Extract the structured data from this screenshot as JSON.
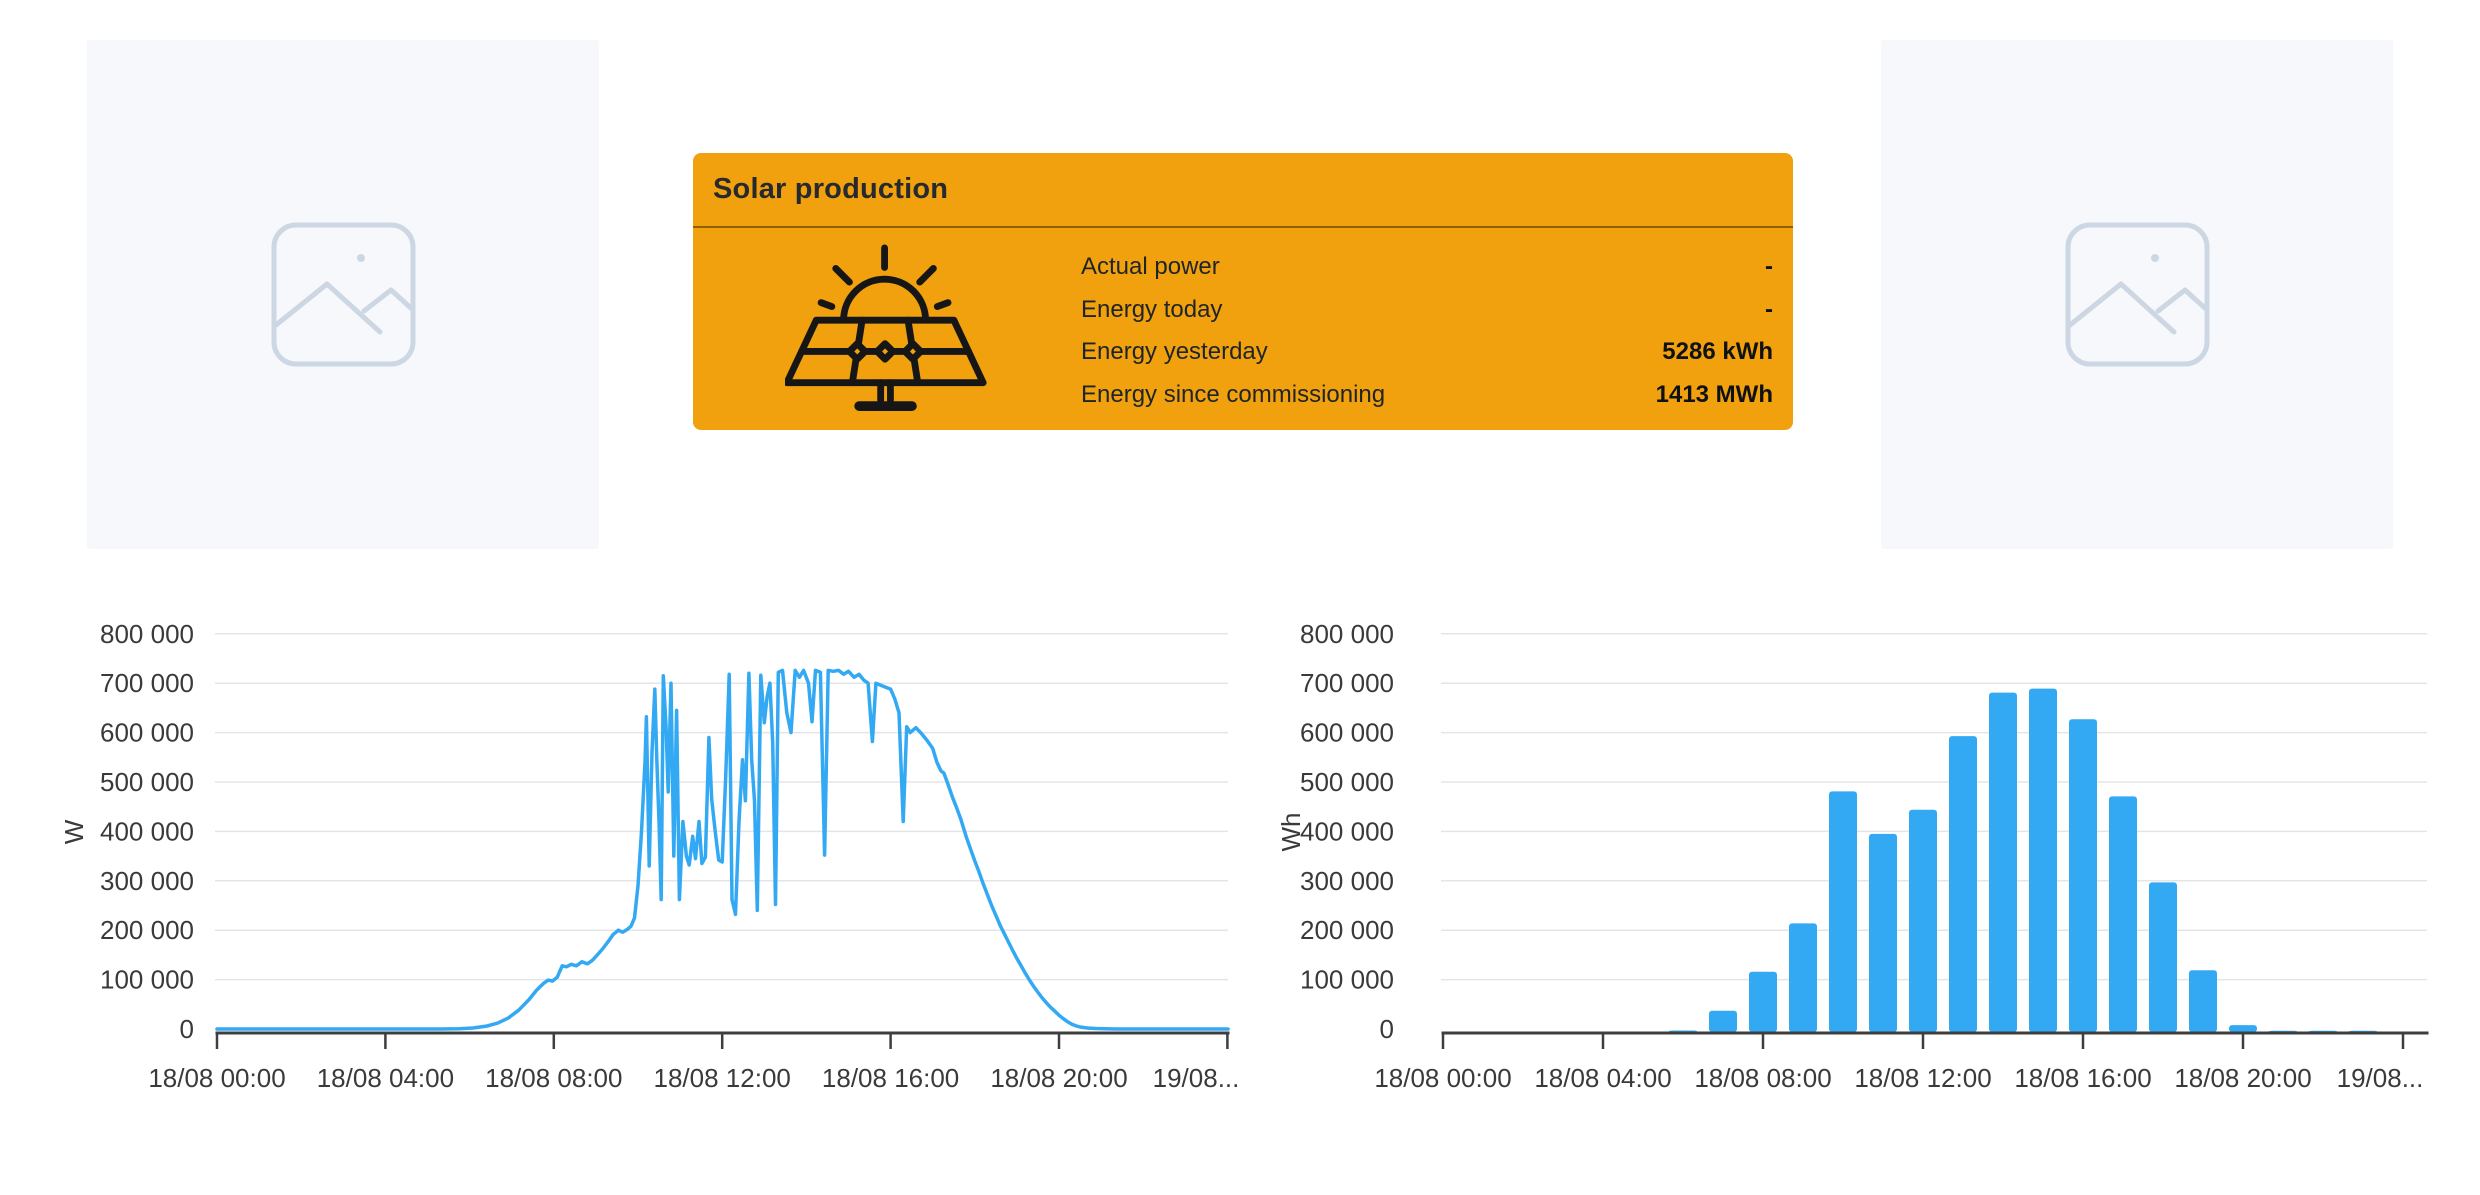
{
  "page": {
    "background": "#ffffff"
  },
  "colors": {
    "accent_orange": "#F0A10D",
    "chart_blue": "#33A9F4",
    "placeholder_icon": "#CDD7E4"
  },
  "solar_card": {
    "title": "Solar production",
    "icon": "solar-panel-icon",
    "rows": [
      {
        "label": "Actual power",
        "value": "-"
      },
      {
        "label": "Energy today",
        "value": "-"
      },
      {
        "label": "Energy yesterday",
        "value": "5286 kWh"
      },
      {
        "label": "Energy since commissioning",
        "value": "1413 MWh"
      }
    ]
  },
  "chart_data": [
    {
      "type": "line",
      "name": "solar-power",
      "title": "",
      "xlabel": "",
      "ylabel": "W",
      "color": "#33A9F4",
      "ylim": [
        0,
        800000
      ],
      "ytick_step": 100000,
      "grid": true,
      "legend": "none",
      "ytick_labels": [
        "0",
        "100 000",
        "200 000",
        "300 000",
        "400 000",
        "500 000",
        "600 000",
        "700 000",
        "800 000"
      ],
      "xtick_labels": [
        "18/08 00:00",
        "18/08 04:00",
        "18/08 08:00",
        "18/08 12:00",
        "18/08 16:00",
        "18/08 20:00",
        "19/08..."
      ],
      "x_unit": "minutes since 18/08 00:00",
      "points": [
        [
          0,
          0
        ],
        [
          40,
          0
        ],
        [
          80,
          0
        ],
        [
          120,
          0
        ],
        [
          160,
          0
        ],
        [
          200,
          0
        ],
        [
          240,
          0
        ],
        [
          280,
          0
        ],
        [
          320,
          0
        ],
        [
          345,
          500
        ],
        [
          365,
          2000
        ],
        [
          385,
          6000
        ],
        [
          400,
          12000
        ],
        [
          415,
          22000
        ],
        [
          430,
          38000
        ],
        [
          445,
          60000
        ],
        [
          455,
          78000
        ],
        [
          465,
          92000
        ],
        [
          472,
          99000
        ],
        [
          478,
          97000
        ],
        [
          485,
          105000
        ],
        [
          492,
          128000
        ],
        [
          498,
          126000
        ],
        [
          505,
          131000
        ],
        [
          512,
          128000
        ],
        [
          520,
          136000
        ],
        [
          528,
          132000
        ],
        [
          535,
          139000
        ],
        [
          542,
          150000
        ],
        [
          550,
          163000
        ],
        [
          558,
          178000
        ],
        [
          565,
          192000
        ],
        [
          572,
          200000
        ],
        [
          578,
          196000
        ],
        [
          585,
          202000
        ],
        [
          590,
          208000
        ],
        [
          595,
          225000
        ],
        [
          600,
          290000
        ],
        [
          605,
          400000
        ],
        [
          610,
          540000
        ],
        [
          612,
          632000
        ],
        [
          616,
          330000
        ],
        [
          620,
          560000
        ],
        [
          624,
          688000
        ],
        [
          627,
          540000
        ],
        [
          630,
          420000
        ],
        [
          633,
          262000
        ],
        [
          636,
          715000
        ],
        [
          640,
          610000
        ],
        [
          643,
          480000
        ],
        [
          647,
          700000
        ],
        [
          651,
          350000
        ],
        [
          655,
          645000
        ],
        [
          659,
          262000
        ],
        [
          664,
          420000
        ],
        [
          669,
          350000
        ],
        [
          673,
          332000
        ],
        [
          678,
          390000
        ],
        [
          682,
          345000
        ],
        [
          687,
          420000
        ],
        [
          691,
          335000
        ],
        [
          696,
          348000
        ],
        [
          701,
          590000
        ],
        [
          705,
          465000
        ],
        [
          710,
          400000
        ],
        [
          715,
          342000
        ],
        [
          720,
          338000
        ],
        [
          725,
          510000
        ],
        [
          730,
          718000
        ],
        [
          734,
          262000
        ],
        [
          739,
          232000
        ],
        [
          744,
          420000
        ],
        [
          749,
          545000
        ],
        [
          753,
          462000
        ],
        [
          758,
          720000
        ],
        [
          762,
          545000
        ],
        [
          766,
          462000
        ],
        [
          770,
          240000
        ],
        [
          775,
          716000
        ],
        [
          780,
          620000
        ],
        [
          784,
          672000
        ],
        [
          788,
          700000
        ],
        [
          792,
          580000
        ],
        [
          796,
          252000
        ],
        [
          800,
          722000
        ],
        [
          806,
          726000
        ],
        [
          812,
          640000
        ],
        [
          818,
          600000
        ],
        [
          824,
          726000
        ],
        [
          830,
          712000
        ],
        [
          836,
          726000
        ],
        [
          843,
          700000
        ],
        [
          848,
          622000
        ],
        [
          853,
          726000
        ],
        [
          860,
          722000
        ],
        [
          866,
          352000
        ],
        [
          871,
          726000
        ],
        [
          878,
          724000
        ],
        [
          886,
          726000
        ],
        [
          893,
          718000
        ],
        [
          900,
          724000
        ],
        [
          908,
          712000
        ],
        [
          915,
          718000
        ],
        [
          922,
          706000
        ],
        [
          928,
          700000
        ],
        [
          934,
          582000
        ],
        [
          939,
          700000
        ],
        [
          946,
          696000
        ],
        [
          953,
          692000
        ],
        [
          960,
          688000
        ],
        [
          966,
          668000
        ],
        [
          972,
          640000
        ],
        [
          978,
          420000
        ],
        [
          983,
          612000
        ],
        [
          988,
          600000
        ],
        [
          996,
          610000
        ],
        [
          1004,
          598000
        ],
        [
          1012,
          584000
        ],
        [
          1020,
          568000
        ],
        [
          1026,
          540000
        ],
        [
          1032,
          522000
        ],
        [
          1036,
          518000
        ],
        [
          1042,
          495000
        ],
        [
          1048,
          470000
        ],
        [
          1054,
          448000
        ],
        [
          1060,
          425000
        ],
        [
          1068,
          388000
        ],
        [
          1074,
          364000
        ],
        [
          1080,
          340000
        ],
        [
          1086,
          318000
        ],
        [
          1092,
          294000
        ],
        [
          1098,
          272000
        ],
        [
          1104,
          250000
        ],
        [
          1110,
          230000
        ],
        [
          1116,
          210000
        ],
        [
          1122,
          193000
        ],
        [
          1128,
          176000
        ],
        [
          1134,
          159000
        ],
        [
          1140,
          143000
        ],
        [
          1146,
          128000
        ],
        [
          1152,
          113000
        ],
        [
          1158,
          99000
        ],
        [
          1164,
          86000
        ],
        [
          1170,
          74000
        ],
        [
          1176,
          63000
        ],
        [
          1182,
          53000
        ],
        [
          1188,
          44000
        ],
        [
          1194,
          36000
        ],
        [
          1200,
          28000
        ],
        [
          1206,
          21000
        ],
        [
          1212,
          15000
        ],
        [
          1218,
          10000
        ],
        [
          1224,
          6500
        ],
        [
          1230,
          4000
        ],
        [
          1240,
          2000
        ],
        [
          1252,
          1000
        ],
        [
          1265,
          400
        ],
        [
          1280,
          0
        ],
        [
          1320,
          0
        ],
        [
          1360,
          0
        ],
        [
          1400,
          0
        ],
        [
          1441,
          0
        ]
      ]
    },
    {
      "type": "bar",
      "name": "solar-energy-hourly",
      "title": "",
      "xlabel": "",
      "ylabel": "Wh",
      "color": "#33A9F4",
      "ylim": [
        0,
        800000
      ],
      "ytick_step": 100000,
      "grid": true,
      "legend": "none",
      "ytick_labels": [
        "0",
        "100 000",
        "200 000",
        "300 000",
        "400 000",
        "500 000",
        "600 000",
        "700 000",
        "800 000"
      ],
      "xtick_labels": [
        "18/08 00:00",
        "18/08 04:00",
        "18/08 08:00",
        "18/08 12:00",
        "18/08 16:00",
        "18/08 20:00",
        "19/08..."
      ],
      "categories": [
        "18/08 00:00",
        "18/08 01:00",
        "18/08 02:00",
        "18/08 03:00",
        "18/08 04:00",
        "18/08 05:00",
        "18/08 06:00",
        "18/08 07:00",
        "18/08 08:00",
        "18/08 09:00",
        "18/08 10:00",
        "18/08 11:00",
        "18/08 12:00",
        "18/08 13:00",
        "18/08 14:00",
        "18/08 15:00",
        "18/08 16:00",
        "18/08 17:00",
        "18/08 18:00",
        "18/08 19:00",
        "18/08 20:00",
        "18/08 21:00",
        "18/08 22:00",
        "18/08 23:00"
      ],
      "values": [
        0,
        0,
        0,
        0,
        0,
        0,
        3000,
        43000,
        122000,
        220000,
        487000,
        401000,
        450000,
        599000,
        687000,
        695000,
        633000,
        477000,
        303000,
        125000,
        14000,
        2000,
        1500,
        1000
      ]
    }
  ]
}
